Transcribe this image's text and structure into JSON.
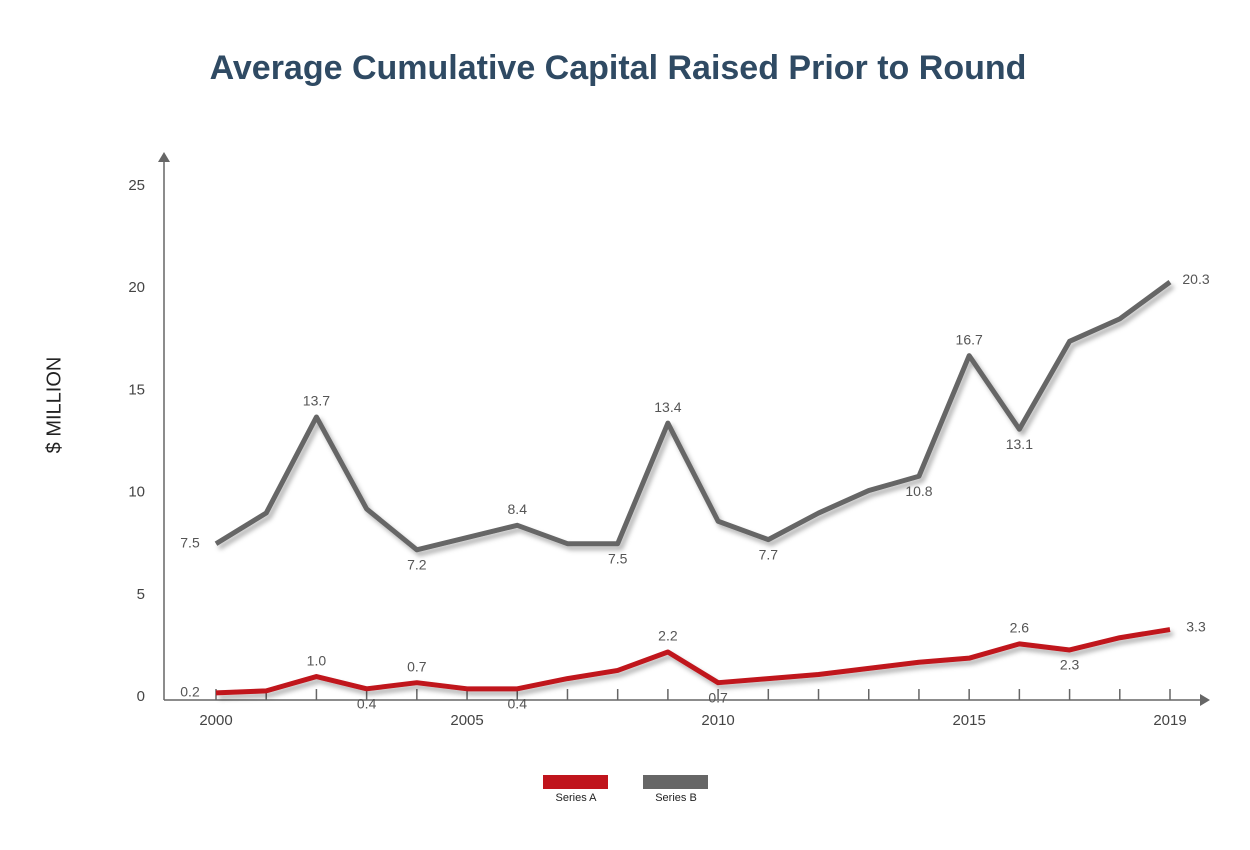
{
  "chart_data": {
    "type": "line",
    "title": "Average Cumulative Capital Raised Prior to Round",
    "y_label": "$ MILLION",
    "x": [
      2000,
      2001,
      2002,
      2003,
      2004,
      2005,
      2006,
      2007,
      2008,
      2009,
      2010,
      2011,
      2012,
      2013,
      2014,
      2015,
      2016,
      2017,
      2018,
      2019
    ],
    "series": [
      {
        "name": "Series A",
        "color": "#c0141c",
        "values": [
          0.2,
          0.3,
          1.0,
          0.4,
          0.7,
          0.4,
          0.4,
          0.9,
          1.3,
          2.2,
          0.7,
          0.9,
          1.1,
          1.4,
          1.7,
          1.9,
          2.6,
          2.3,
          2.9,
          3.3
        ],
        "value_labels": [
          "0.2",
          null,
          "1.0",
          "0.4",
          "0.7",
          null,
          "0.4",
          null,
          null,
          "2.2",
          "0.7",
          null,
          null,
          null,
          null,
          null,
          "2.6",
          "2.3",
          null,
          "3.3"
        ]
      },
      {
        "name": "Series B",
        "color": "#666666",
        "values": [
          7.5,
          9.0,
          13.7,
          9.2,
          7.2,
          7.8,
          8.4,
          7.5,
          7.5,
          13.4,
          8.6,
          7.7,
          9.0,
          10.1,
          10.8,
          16.7,
          13.1,
          17.4,
          18.5,
          20.3
        ],
        "value_labels": [
          "7.5",
          null,
          "13.7",
          null,
          "7.2",
          null,
          "8.4",
          null,
          "7.5",
          "13.4",
          null,
          "7.7",
          null,
          null,
          "10.8",
          "16.7",
          "13.1",
          null,
          null,
          "20.3"
        ]
      }
    ],
    "xlim": [
      2000,
      2019
    ],
    "xticks": [
      2000,
      2005,
      2010,
      2015,
      2019
    ],
    "ylim": [
      0,
      25
    ],
    "yticks": [
      0,
      5,
      10,
      15,
      20,
      25
    ]
  }
}
